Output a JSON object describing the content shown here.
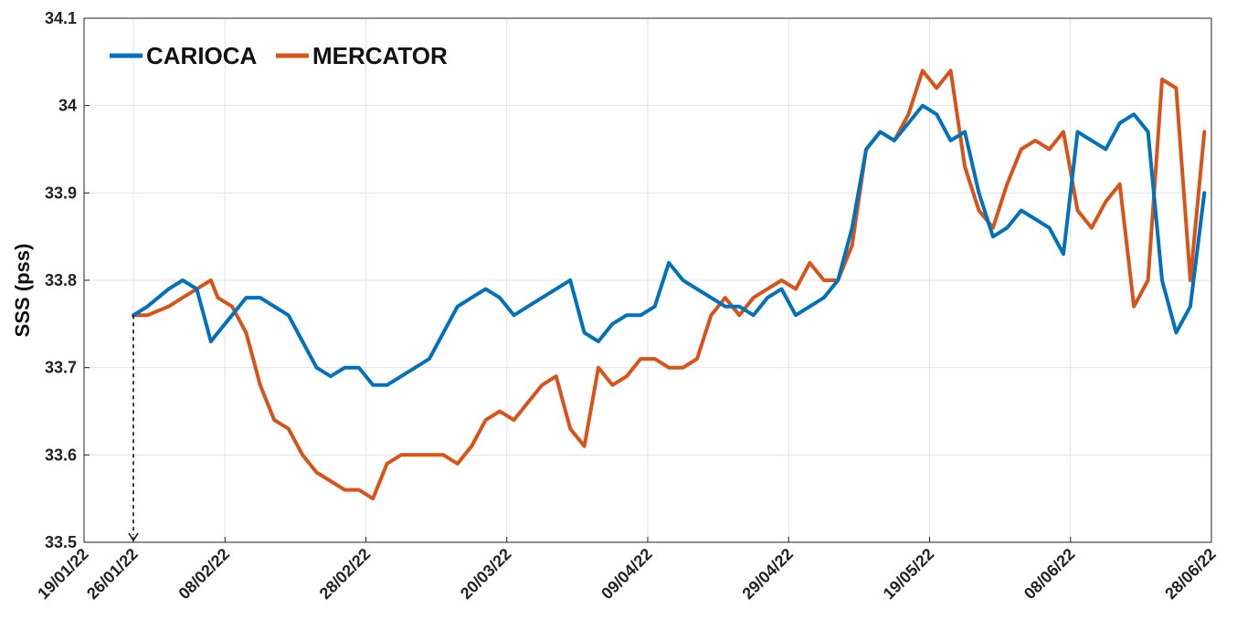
{
  "chart_data": {
    "type": "line",
    "title": "",
    "xlabel": "",
    "ylabel": "SSS (pss)",
    "x_tick_labels": [
      "19/01/22",
      "26/01/22",
      "08/02/22",
      "28/02/22",
      "20/03/22",
      "09/04/22",
      "29/04/22",
      "19/05/22",
      "08/06/22",
      "28/06/22"
    ],
    "x_tick_dates": [
      "2022-01-19",
      "2022-01-26",
      "2022-02-08",
      "2022-02-28",
      "2022-03-20",
      "2022-04-09",
      "2022-04-29",
      "2022-05-19",
      "2022-06-08",
      "2022-06-28"
    ],
    "xlim": [
      "2022-01-19",
      "2022-06-28"
    ],
    "ylim": [
      33.5,
      34.1
    ],
    "y_tick_labels": [
      "33.5",
      "33.6",
      "33.7",
      "33.8",
      "33.9",
      "34",
      "34.1"
    ],
    "y_ticks": [
      33.5,
      33.6,
      33.7,
      33.8,
      33.9,
      34.0,
      34.1
    ],
    "grid": true,
    "legend_position": "top-left",
    "annotation": {
      "type": "dashed-arrow",
      "x": "2022-01-26",
      "from_y": 33.76,
      "to_y": 33.5
    },
    "series": [
      {
        "name": "CARIOCA",
        "color": "#0072BD",
        "x": [
          "2022-01-26",
          "2022-01-28",
          "2022-01-31",
          "2022-02-02",
          "2022-02-04",
          "2022-02-06",
          "2022-02-07",
          "2022-02-09",
          "2022-02-11",
          "2022-02-13",
          "2022-02-15",
          "2022-02-17",
          "2022-02-19",
          "2022-02-21",
          "2022-02-23",
          "2022-02-25",
          "2022-02-27",
          "2022-03-01",
          "2022-03-03",
          "2022-03-05",
          "2022-03-07",
          "2022-03-09",
          "2022-03-11",
          "2022-03-13",
          "2022-03-15",
          "2022-03-17",
          "2022-03-19",
          "2022-03-21",
          "2022-03-23",
          "2022-03-25",
          "2022-03-27",
          "2022-03-29",
          "2022-03-31",
          "2022-04-02",
          "2022-04-04",
          "2022-04-06",
          "2022-04-08",
          "2022-04-10",
          "2022-04-12",
          "2022-04-14",
          "2022-04-16",
          "2022-04-18",
          "2022-04-20",
          "2022-04-22",
          "2022-04-24",
          "2022-04-26",
          "2022-04-28",
          "2022-04-30",
          "2022-05-02",
          "2022-05-04",
          "2022-05-06",
          "2022-05-08",
          "2022-05-10",
          "2022-05-12",
          "2022-05-14",
          "2022-05-16",
          "2022-05-18",
          "2022-05-20",
          "2022-05-22",
          "2022-05-24",
          "2022-05-26",
          "2022-05-28",
          "2022-05-30",
          "2022-06-01",
          "2022-06-03",
          "2022-06-05",
          "2022-06-07",
          "2022-06-09",
          "2022-06-11",
          "2022-06-13",
          "2022-06-15",
          "2022-06-17",
          "2022-06-19",
          "2022-06-21",
          "2022-06-23",
          "2022-06-25",
          "2022-06-27"
        ],
        "values": [
          33.76,
          33.77,
          33.79,
          33.8,
          33.79,
          33.73,
          33.74,
          33.76,
          33.78,
          33.78,
          33.77,
          33.76,
          33.73,
          33.7,
          33.69,
          33.7,
          33.7,
          33.68,
          33.68,
          33.69,
          33.7,
          33.71,
          33.74,
          33.77,
          33.78,
          33.79,
          33.78,
          33.76,
          33.77,
          33.78,
          33.79,
          33.8,
          33.74,
          33.73,
          33.75,
          33.76,
          33.76,
          33.77,
          33.82,
          33.8,
          33.79,
          33.78,
          33.77,
          33.77,
          33.76,
          33.78,
          33.79,
          33.76,
          33.77,
          33.78,
          33.8,
          33.86,
          33.95,
          33.97,
          33.96,
          33.98,
          34.0,
          33.99,
          33.96,
          33.97,
          33.9,
          33.85,
          33.86,
          33.88,
          33.87,
          33.86,
          33.83,
          33.97,
          33.96,
          33.95,
          33.98,
          33.99,
          33.97,
          33.8,
          33.74,
          33.77,
          33.9
        ]
      },
      {
        "name": "MERCATOR",
        "color": "#D95319",
        "x": [
          "2022-01-26",
          "2022-01-28",
          "2022-01-31",
          "2022-02-02",
          "2022-02-04",
          "2022-02-06",
          "2022-02-07",
          "2022-02-09",
          "2022-02-11",
          "2022-02-13",
          "2022-02-15",
          "2022-02-17",
          "2022-02-19",
          "2022-02-21",
          "2022-02-23",
          "2022-02-25",
          "2022-02-27",
          "2022-03-01",
          "2022-03-03",
          "2022-03-05",
          "2022-03-07",
          "2022-03-09",
          "2022-03-11",
          "2022-03-13",
          "2022-03-15",
          "2022-03-17",
          "2022-03-19",
          "2022-03-21",
          "2022-03-23",
          "2022-03-25",
          "2022-03-27",
          "2022-03-29",
          "2022-03-31",
          "2022-04-02",
          "2022-04-04",
          "2022-04-06",
          "2022-04-08",
          "2022-04-10",
          "2022-04-12",
          "2022-04-14",
          "2022-04-16",
          "2022-04-18",
          "2022-04-20",
          "2022-04-22",
          "2022-04-24",
          "2022-04-26",
          "2022-04-28",
          "2022-04-30",
          "2022-05-02",
          "2022-05-04",
          "2022-05-06",
          "2022-05-08",
          "2022-05-10",
          "2022-05-12",
          "2022-05-14",
          "2022-05-16",
          "2022-05-18",
          "2022-05-20",
          "2022-05-22",
          "2022-05-24",
          "2022-05-26",
          "2022-05-28",
          "2022-05-30",
          "2022-06-01",
          "2022-06-03",
          "2022-06-05",
          "2022-06-07",
          "2022-06-09",
          "2022-06-11",
          "2022-06-13",
          "2022-06-15",
          "2022-06-17",
          "2022-06-19",
          "2022-06-21",
          "2022-06-23",
          "2022-06-25",
          "2022-06-27"
        ],
        "values": [
          33.76,
          33.76,
          33.77,
          33.78,
          33.79,
          33.8,
          33.78,
          33.77,
          33.74,
          33.68,
          33.64,
          33.63,
          33.6,
          33.58,
          33.57,
          33.56,
          33.56,
          33.55,
          33.59,
          33.6,
          33.6,
          33.6,
          33.6,
          33.59,
          33.61,
          33.64,
          33.65,
          33.64,
          33.66,
          33.68,
          33.69,
          33.63,
          33.61,
          33.7,
          33.68,
          33.69,
          33.71,
          33.71,
          33.7,
          33.7,
          33.71,
          33.76,
          33.78,
          33.76,
          33.78,
          33.79,
          33.8,
          33.79,
          33.82,
          33.8,
          33.8,
          33.84,
          33.95,
          33.97,
          33.96,
          33.99,
          34.04,
          34.02,
          34.04,
          33.93,
          33.88,
          33.86,
          33.91,
          33.95,
          33.96,
          33.95,
          33.97,
          33.88,
          33.86,
          33.89,
          33.91,
          33.77,
          33.8,
          34.03,
          34.02,
          33.8,
          33.97
        ]
      }
    ]
  }
}
